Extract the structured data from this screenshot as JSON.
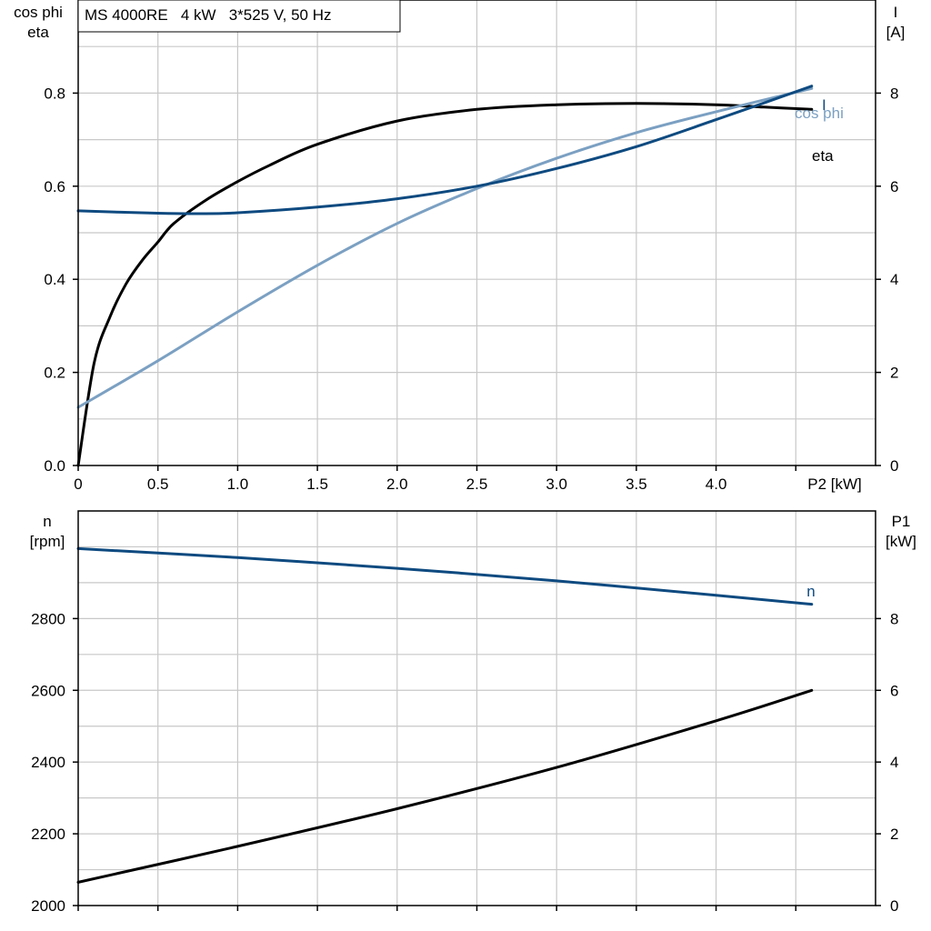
{
  "title": "MS 4000RE   4 kW   3*525 V, 50 Hz",
  "colors": {
    "eta": "#000000",
    "cos_phi": "#7ba0c2",
    "current": "#0e4a80",
    "speed": "#0e4a80",
    "p1": "#000000",
    "grid": "#c8c8c8"
  },
  "chart_data": [
    {
      "type": "line",
      "title": "MS 4000RE   4 kW   3*525 V, 50 Hz",
      "xlabel": "P2 [kW]",
      "ylabel_left": [
        "cos phi",
        "eta"
      ],
      "ylabel_right": [
        "I",
        "[A]"
      ],
      "xlim": [
        0,
        5.0
      ],
      "ylim_left": [
        0,
        1.0
      ],
      "ylim_right": [
        0,
        10
      ],
      "x_ticks": [
        "0",
        "0.5",
        "1.0",
        "1.5",
        "2.0",
        "2.5",
        "3.0",
        "3.5",
        "4.0"
      ],
      "y_left_ticks": [
        "0.0",
        "0.2",
        "0.4",
        "0.6",
        "0.8"
      ],
      "y_right_ticks": [
        "0",
        "2",
        "4",
        "6",
        "8"
      ],
      "grid": true,
      "series": [
        {
          "name": "eta",
          "axis": "left",
          "x": [
            0,
            0.1,
            0.2,
            0.3,
            0.4,
            0.5,
            0.6,
            0.8,
            1.0,
            1.2,
            1.5,
            2.0,
            2.5,
            3.0,
            3.5,
            4.0,
            4.3,
            4.6
          ],
          "y": [
            0,
            0.22,
            0.32,
            0.39,
            0.44,
            0.48,
            0.52,
            0.57,
            0.61,
            0.645,
            0.69,
            0.74,
            0.765,
            0.775,
            0.778,
            0.775,
            0.77,
            0.765
          ]
        },
        {
          "name": "cos phi",
          "axis": "left",
          "x": [
            0,
            0.5,
            1.0,
            1.5,
            2.0,
            2.5,
            3.0,
            3.5,
            4.0,
            4.6
          ],
          "y": [
            0.125,
            0.225,
            0.33,
            0.43,
            0.52,
            0.595,
            0.66,
            0.715,
            0.76,
            0.81
          ]
        },
        {
          "name": "I",
          "axis": "right",
          "x": [
            0,
            0.5,
            0.75,
            1.0,
            1.5,
            2.0,
            2.5,
            3.0,
            3.5,
            4.0,
            4.6
          ],
          "y": [
            5.47,
            5.42,
            5.41,
            5.43,
            5.55,
            5.73,
            6.0,
            6.38,
            6.85,
            7.43,
            8.15
          ]
        }
      ],
      "annotations": [
        "cos phi",
        "I",
        "eta"
      ]
    },
    {
      "type": "line",
      "ylabel_left": [
        "n",
        "[rpm]"
      ],
      "ylabel_right": [
        "P1",
        "[kW]"
      ],
      "xlim": [
        0,
        5.0
      ],
      "ylim_left": [
        2000,
        3100
      ],
      "ylim_right": [
        0,
        11
      ],
      "y_left_ticks": [
        "2000",
        "2200",
        "2400",
        "2600",
        "2800"
      ],
      "y_right_ticks": [
        "0",
        "2",
        "4",
        "6",
        "8"
      ],
      "grid": true,
      "series": [
        {
          "name": "n",
          "axis": "left",
          "x": [
            0,
            1.0,
            2.0,
            3.0,
            4.0,
            4.6
          ],
          "y": [
            2995,
            2970,
            2940,
            2905,
            2865,
            2840
          ]
        },
        {
          "name": "P1",
          "axis": "right",
          "x": [
            0,
            1.0,
            2.0,
            3.0,
            4.0,
            4.6
          ],
          "y": [
            0.65,
            1.65,
            2.7,
            3.85,
            5.15,
            6.0
          ]
        }
      ],
      "annotations": [
        "n"
      ]
    }
  ]
}
